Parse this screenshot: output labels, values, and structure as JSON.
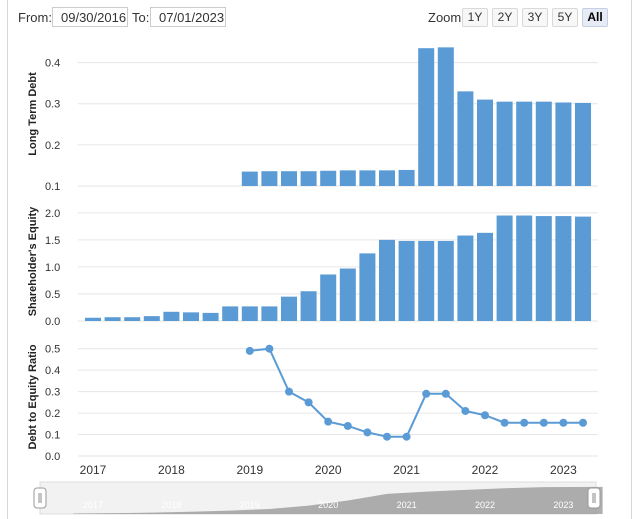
{
  "toolbar": {
    "from_label": "From:",
    "from_value": "09/30/2016",
    "to_label": "To:",
    "to_value": "07/01/2023",
    "zoom_label": "Zoom:",
    "zoom_buttons": [
      "1Y",
      "2Y",
      "3Y",
      "5Y",
      "All"
    ],
    "zoom_active": "All"
  },
  "colors": {
    "series": "#5b9bd5",
    "grid": "#e6e6e6",
    "navigator_fill": "#9a9a9a"
  },
  "chart_data": [
    {
      "type": "bar",
      "ylabel": "Long Term Debt",
      "ylim": [
        0.1,
        0.45
      ],
      "yticks": [
        "0.1",
        "0.2",
        "0.3",
        "0.4"
      ],
      "grid": true,
      "x": [
        2017.0,
        2017.25,
        2017.5,
        2017.75,
        2018.0,
        2018.25,
        2018.5,
        2018.75,
        2019.0,
        2019.25,
        2019.5,
        2019.75,
        2020.0,
        2020.25,
        2020.5,
        2020.75,
        2021.0,
        2021.25,
        2021.5,
        2021.75,
        2022.0,
        2022.25,
        2022.5,
        2022.75,
        2023.0,
        2023.25
      ],
      "values": [
        null,
        null,
        null,
        null,
        null,
        null,
        null,
        null,
        0.135,
        0.136,
        0.136,
        0.136,
        0.137,
        0.138,
        0.138,
        0.138,
        0.139,
        0.435,
        0.437,
        0.33,
        0.31,
        0.305,
        0.305,
        0.305,
        0.303,
        0.302
      ]
    },
    {
      "type": "bar",
      "ylabel": "Shareholder's Equity",
      "ylim": [
        0,
        2.2
      ],
      "yticks": [
        "0.0",
        "0.5",
        "1.0",
        "1.5",
        "2.0"
      ],
      "grid": true,
      "x": [
        2017.0,
        2017.25,
        2017.5,
        2017.75,
        2018.0,
        2018.25,
        2018.5,
        2018.75,
        2019.0,
        2019.25,
        2019.5,
        2019.75,
        2020.0,
        2020.25,
        2020.5,
        2020.75,
        2021.0,
        2021.25,
        2021.5,
        2021.75,
        2022.0,
        2022.25,
        2022.5,
        2022.75,
        2023.0,
        2023.25
      ],
      "values": [
        0.06,
        0.07,
        0.07,
        0.09,
        0.17,
        0.16,
        0.15,
        0.27,
        0.27,
        0.27,
        0.45,
        0.55,
        0.86,
        0.97,
        1.25,
        1.5,
        1.48,
        1.48,
        1.48,
        1.58,
        1.63,
        1.95,
        1.95,
        1.94,
        1.94,
        1.93
      ]
    },
    {
      "type": "line",
      "ylabel": "Debt to Equity Ratio",
      "ylim": [
        0,
        0.55
      ],
      "yticks": [
        "0.0",
        "0.1",
        "0.2",
        "0.3",
        "0.4",
        "0.5"
      ],
      "grid": true,
      "x": [
        2017.0,
        2017.25,
        2017.5,
        2017.75,
        2018.0,
        2018.25,
        2018.5,
        2018.75,
        2019.0,
        2019.25,
        2019.5,
        2019.75,
        2020.0,
        2020.25,
        2020.5,
        2020.75,
        2021.0,
        2021.25,
        2021.5,
        2021.75,
        2022.0,
        2022.25,
        2022.5,
        2022.75,
        2023.0,
        2023.25
      ],
      "values": [
        null,
        null,
        null,
        null,
        null,
        null,
        null,
        null,
        0.49,
        0.5,
        0.3,
        0.25,
        0.16,
        0.14,
        0.11,
        0.09,
        0.09,
        0.29,
        0.29,
        0.21,
        0.19,
        0.155,
        0.155,
        0.155,
        0.155,
        0.155
      ]
    }
  ],
  "x_axis": {
    "labels": [
      "2017",
      "2018",
      "2019",
      "2020",
      "2021",
      "2022",
      "2023"
    ]
  },
  "navigator": {
    "labels": [
      "2017",
      "2018",
      "2019",
      "2020",
      "2021",
      "2022",
      "2023"
    ],
    "x": [
      2016.75,
      2017.25,
      2017.75,
      2018.25,
      2018.75,
      2019.25,
      2019.75,
      2020.25,
      2020.75,
      2021.25,
      2021.75,
      2022.25,
      2022.75,
      2023.5
    ],
    "values": [
      0.02,
      0.03,
      0.05,
      0.08,
      0.12,
      0.18,
      0.3,
      0.48,
      0.72,
      0.8,
      0.86,
      0.92,
      0.96,
      0.97
    ]
  }
}
